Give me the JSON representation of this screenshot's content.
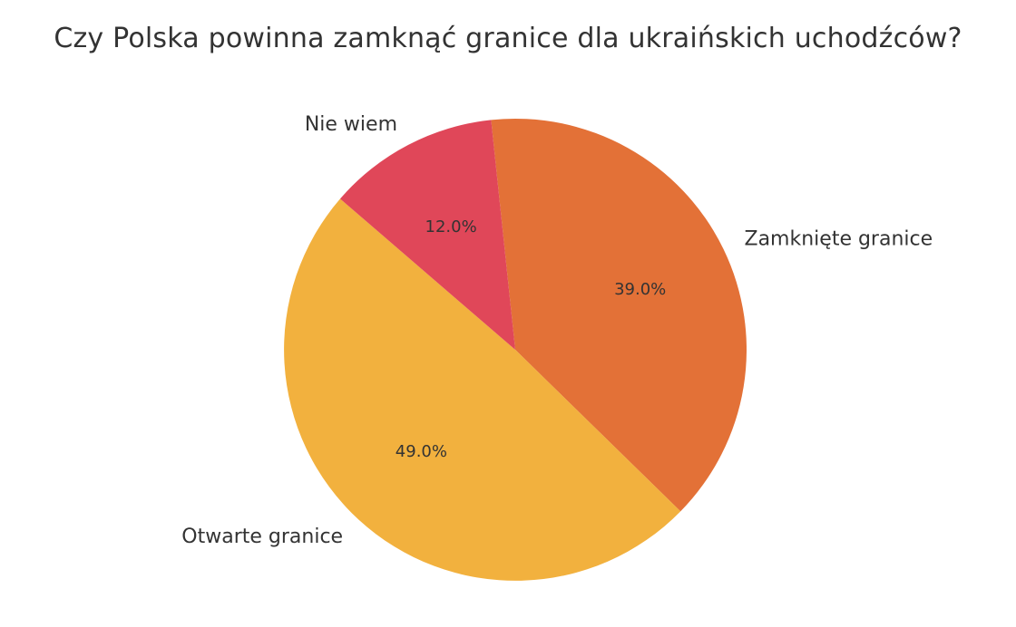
{
  "chart_data": {
    "type": "pie",
    "title": "Czy Polska powinna zamknąć granice dla ukraińskich uchodźców?",
    "slices": [
      {
        "label": "Zamknięte granice",
        "value": 39.0,
        "pct_label": "39.0%",
        "color": "#E37137"
      },
      {
        "label": "Otwarte granice",
        "value": 49.0,
        "pct_label": "49.0%",
        "color": "#F2B13E"
      },
      {
        "label": "Nie wiem",
        "value": 12.0,
        "pct_label": "12.0%",
        "color": "#E04759"
      }
    ],
    "start_angle_deg": 96,
    "direction": "clockwise",
    "legend": "none"
  }
}
